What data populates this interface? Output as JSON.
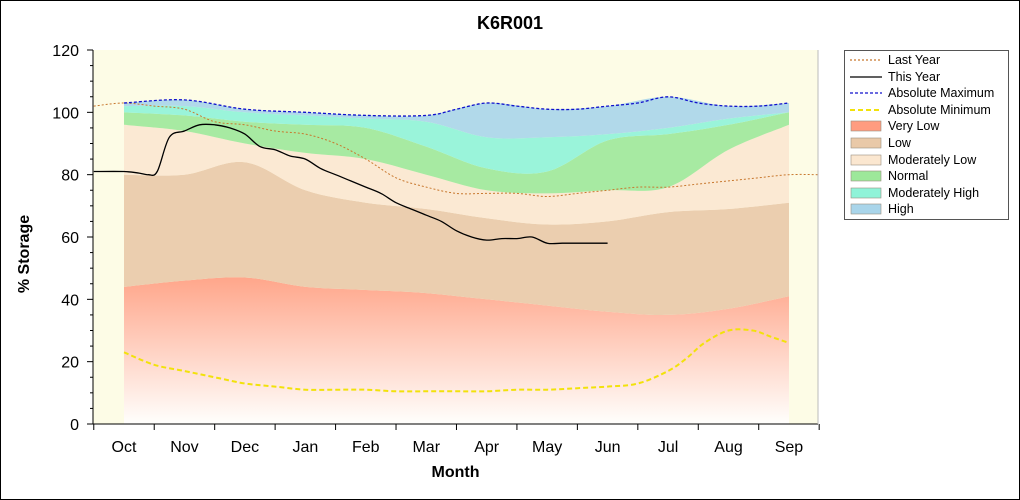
{
  "chart_data": {
    "type": "area",
    "title": "K6R001",
    "xlabel": "Month",
    "ylabel": "% Storage",
    "ylim": [
      0,
      120
    ],
    "yticks": [
      0,
      20,
      40,
      60,
      80,
      100,
      120
    ],
    "categories": [
      "Oct",
      "Nov",
      "Dec",
      "Jan",
      "Feb",
      "Mar",
      "Apr",
      "May",
      "Jun",
      "Jul",
      "Aug",
      "Sep"
    ],
    "bands": [
      {
        "name": "Very Low",
        "color": "#ff9c80",
        "lower": [
          0,
          0,
          0,
          0,
          0,
          0,
          0,
          0,
          0,
          0,
          0,
          0
        ],
        "upper": [
          44,
          46,
          47,
          44,
          43,
          42,
          40,
          38,
          36,
          35,
          37,
          41
        ]
      },
      {
        "name": "Low",
        "color": "#e9c9a8",
        "lower": [
          44,
          46,
          47,
          44,
          43,
          42,
          40,
          38,
          36,
          35,
          37,
          41
        ],
        "upper": [
          80,
          80,
          84,
          75,
          71,
          69,
          66,
          64,
          65,
          68,
          69,
          71
        ]
      },
      {
        "name": "Moderately Low",
        "color": "#fbe7d0",
        "lower": [
          80,
          80,
          84,
          75,
          71,
          69,
          66,
          64,
          65,
          68,
          69,
          71
        ],
        "upper": [
          96,
          94,
          90,
          87,
          85,
          80,
          75,
          74,
          75,
          76,
          88,
          96
        ]
      },
      {
        "name": "Normal",
        "color": "#9de89a",
        "lower": [
          96,
          94,
          90,
          87,
          85,
          80,
          75,
          74,
          75,
          76,
          88,
          96
        ],
        "upper": [
          100,
          99,
          97,
          96,
          95,
          89,
          82,
          81,
          91,
          93,
          96,
          100
        ]
      },
      {
        "name": "Moderately High",
        "color": "#8ff3d8",
        "lower": [
          100,
          99,
          97,
          96,
          95,
          89,
          82,
          81,
          91,
          93,
          96,
          100
        ],
        "upper": [
          102,
          102,
          100,
          99,
          98,
          97,
          92,
          92,
          93,
          95,
          98,
          100
        ]
      },
      {
        "name": "High",
        "color": "#a9d5ea",
        "lower": [
          102,
          102,
          100,
          99,
          98,
          97,
          92,
          92,
          93,
          95,
          98,
          100
        ],
        "upper": [
          103,
          104,
          101,
          100,
          99,
          99,
          103,
          101,
          102,
          105,
          102,
          103
        ]
      }
    ],
    "series": [
      {
        "name": "Last Year",
        "color": "#c8782e",
        "dash": "2,2",
        "width": 1,
        "x": [
          -0.5,
          0,
          0.5,
          1,
          1.5,
          2,
          2.5,
          3,
          3.5,
          4,
          4.5,
          5,
          5.5,
          6,
          6.5,
          7,
          7.5,
          8,
          8.5,
          9,
          9.5,
          10,
          10.5,
          11,
          11.5
        ],
        "y": [
          102,
          103,
          102,
          101,
          97,
          96,
          94,
          93,
          90,
          85,
          79,
          76,
          74,
          74,
          74,
          73,
          74,
          75,
          76,
          76,
          77,
          78,
          79,
          80,
          80
        ]
      },
      {
        "name": "This Year",
        "color": "#000000",
        "dash": "",
        "width": 1.3,
        "x": [
          -0.5,
          0,
          0.25,
          0.4,
          0.55,
          0.75,
          1,
          1.25,
          1.5,
          1.75,
          2,
          2.25,
          2.5,
          2.75,
          3,
          3.25,
          3.5,
          3.75,
          4,
          4.25,
          4.5,
          4.75,
          5,
          5.25,
          5.5,
          5.75,
          6,
          6.25,
          6.5,
          6.75,
          7,
          7.25,
          7.5,
          7.75,
          8
        ],
        "y": [
          81,
          81,
          80.5,
          80,
          81,
          92,
          94,
          96,
          96,
          95,
          93,
          89,
          88,
          86,
          85,
          82,
          80,
          78,
          76,
          74,
          71,
          69,
          67,
          65,
          62,
          60,
          59,
          59.5,
          59.5,
          60,
          58,
          58,
          58,
          58,
          58
        ]
      },
      {
        "name": "Absolute Maximum",
        "color": "#1010cc",
        "dash": "3,2",
        "width": 1.3,
        "x": [
          0,
          1,
          2,
          3,
          4,
          5,
          5.5,
          6,
          6.5,
          7,
          7.5,
          8,
          8.5,
          9,
          9.5,
          10,
          10.5,
          11
        ],
        "y": [
          103,
          104,
          101,
          100,
          99,
          99,
          101,
          103,
          102,
          101,
          101,
          102,
          103,
          105,
          103,
          102,
          102,
          103
        ]
      },
      {
        "name": "Absolute Minimum",
        "color": "#f2e20a",
        "dash": "5,3",
        "width": 2,
        "x": [
          0,
          0.5,
          1,
          1.5,
          2,
          2.5,
          3,
          3.5,
          4,
          4.5,
          5,
          5.5,
          6,
          6.5,
          7,
          7.5,
          8,
          8.5,
          9,
          9.3,
          9.6,
          10,
          10.4,
          10.7,
          11
        ],
        "y": [
          23,
          19,
          17,
          15,
          13,
          12,
          11,
          11,
          11,
          10.5,
          10.5,
          10.5,
          10.5,
          11,
          11,
          11.5,
          12,
          13,
          17,
          21,
          26,
          30,
          30,
          28,
          26
        ]
      }
    ],
    "legend": {
      "position": "right",
      "items": [
        {
          "label": "Last Year",
          "kind": "line",
          "color": "#c8782e",
          "dash": "2,2"
        },
        {
          "label": "This Year",
          "kind": "line",
          "color": "#000000",
          "dash": ""
        },
        {
          "label": "Absolute Maximum",
          "kind": "line",
          "color": "#1010cc",
          "dash": "3,2"
        },
        {
          "label": "Absolute Minimum",
          "kind": "line",
          "color": "#f2e20a",
          "dash": "5,3"
        },
        {
          "label": "Very Low",
          "kind": "box",
          "color": "#ff9c80"
        },
        {
          "label": "Low",
          "kind": "box",
          "color": "#e9c9a8"
        },
        {
          "label": "Moderately Low",
          "kind": "box",
          "color": "#fbe7d0"
        },
        {
          "label": "Normal",
          "kind": "box",
          "color": "#9de89a"
        },
        {
          "label": "Moderately High",
          "kind": "box",
          "color": "#8ff3d8"
        },
        {
          "label": "High",
          "kind": "box",
          "color": "#a9d5ea"
        }
      ]
    },
    "plot_background": "#fdfce6",
    "grid": false
  }
}
